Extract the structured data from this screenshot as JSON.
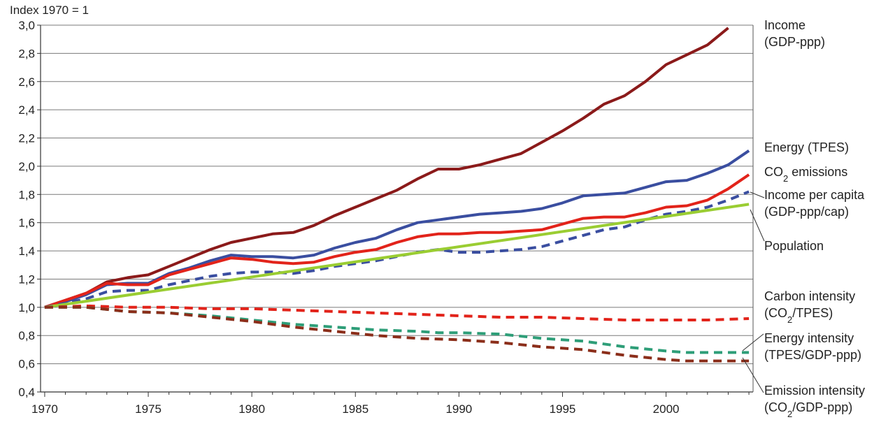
{
  "chart_data": {
    "type": "line",
    "title": "",
    "ylabel": "Index 1970 = 1",
    "xlabel": "",
    "xlim": [
      1970,
      2004
    ],
    "ylim": [
      0.4,
      3.0
    ],
    "grid": true,
    "legend": "right",
    "x_ticks": [
      "1970",
      "1975",
      "1980",
      "1985",
      "1990",
      "1995",
      "2000"
    ],
    "y_ticks": [
      "0,4",
      "0,6",
      "0,8",
      "1,0",
      "1,2",
      "1,4",
      "1,6",
      "1,8",
      "2,0",
      "2,2",
      "2,4",
      "2,6",
      "2,8",
      "3,0"
    ],
    "series": [
      {
        "name": "Income (GDP-ppp)",
        "label_lines": [
          "Income",
          "(GDP-ppp)"
        ],
        "color": "#8b1a1a",
        "dashed": false,
        "x": [
          1970,
          1971,
          1972,
          1973,
          1974,
          1975,
          1976,
          1977,
          1978,
          1979,
          1980,
          1981,
          1982,
          1983,
          1984,
          1985,
          1986,
          1987,
          1988,
          1989,
          1990,
          1991,
          1992,
          1993,
          1994,
          1995,
          1996,
          1997,
          1998,
          1999,
          2000,
          2001,
          2002,
          2003
        ],
        "y": [
          1.0,
          1.05,
          1.1,
          1.18,
          1.21,
          1.23,
          1.29,
          1.35,
          1.41,
          1.46,
          1.49,
          1.52,
          1.53,
          1.58,
          1.65,
          1.71,
          1.77,
          1.83,
          1.91,
          1.98,
          1.98,
          2.01,
          2.05,
          2.09,
          2.17,
          2.25,
          2.34,
          2.44,
          2.5,
          2.6,
          2.72,
          2.79,
          2.86,
          2.98
        ]
      },
      {
        "name": "Energy (TPES)",
        "label_lines": [
          "Energy (TPES)"
        ],
        "color": "#3a4ea0",
        "dashed": false,
        "x": [
          1970,
          1971,
          1972,
          1973,
          1974,
          1975,
          1976,
          1977,
          1978,
          1979,
          1980,
          1981,
          1982,
          1983,
          1984,
          1985,
          1986,
          1987,
          1988,
          1989,
          1990,
          1991,
          1992,
          1993,
          1994,
          1995,
          1996,
          1997,
          1998,
          1999,
          2000,
          2001,
          2002,
          2003,
          2004
        ],
        "y": [
          1.0,
          1.04,
          1.09,
          1.16,
          1.17,
          1.17,
          1.24,
          1.28,
          1.33,
          1.37,
          1.36,
          1.36,
          1.35,
          1.37,
          1.42,
          1.46,
          1.49,
          1.55,
          1.6,
          1.62,
          1.64,
          1.66,
          1.67,
          1.68,
          1.7,
          1.74,
          1.79,
          1.8,
          1.81,
          1.85,
          1.89,
          1.9,
          1.95,
          2.01,
          2.11
        ]
      },
      {
        "name": "CO2 emissions",
        "label_lines": [
          "CO2 emissions"
        ],
        "color": "#e2231a",
        "dashed": false,
        "x": [
          1970,
          1971,
          1972,
          1973,
          1974,
          1975,
          1976,
          1977,
          1978,
          1979,
          1980,
          1981,
          1982,
          1983,
          1984,
          1985,
          1986,
          1987,
          1988,
          1989,
          1990,
          1991,
          1992,
          1993,
          1994,
          1995,
          1996,
          1997,
          1998,
          1999,
          2000,
          2001,
          2002,
          2003,
          2004
        ],
        "y": [
          1.0,
          1.05,
          1.1,
          1.17,
          1.16,
          1.16,
          1.23,
          1.27,
          1.31,
          1.35,
          1.34,
          1.32,
          1.31,
          1.32,
          1.36,
          1.39,
          1.41,
          1.46,
          1.5,
          1.52,
          1.52,
          1.53,
          1.53,
          1.54,
          1.55,
          1.59,
          1.63,
          1.64,
          1.64,
          1.67,
          1.71,
          1.72,
          1.76,
          1.84,
          1.94
        ]
      },
      {
        "name": "Income per capita (GDP-ppp/cap)",
        "label_lines": [
          "Income per capita",
          "(GDP-ppp/cap)"
        ],
        "color": "#3a4ea0",
        "dashed": true,
        "x": [
          1970,
          1971,
          1972,
          1973,
          1974,
          1975,
          1976,
          1977,
          1978,
          1979,
          1980,
          1981,
          1982,
          1983,
          1984,
          1985,
          1986,
          1987,
          1988,
          1989,
          1990,
          1991,
          1992,
          1993,
          1994,
          1995,
          1996,
          1997,
          1998,
          1999,
          2000,
          2001,
          2002,
          2003,
          2004
        ],
        "y": [
          1.0,
          1.03,
          1.06,
          1.11,
          1.12,
          1.12,
          1.16,
          1.19,
          1.22,
          1.24,
          1.25,
          1.25,
          1.24,
          1.26,
          1.29,
          1.31,
          1.33,
          1.36,
          1.39,
          1.41,
          1.39,
          1.39,
          1.4,
          1.41,
          1.43,
          1.47,
          1.51,
          1.55,
          1.57,
          1.62,
          1.66,
          1.68,
          1.71,
          1.76,
          1.82
        ]
      },
      {
        "name": "Population",
        "label_lines": [
          "Population"
        ],
        "color": "#9acd32",
        "dashed": false,
        "x": [
          1970,
          2004
        ],
        "y": [
          1.0,
          1.73
        ]
      },
      {
        "name": "Carbon intensity (CO2/TPES)",
        "label_lines": [
          "Carbon intensity",
          "(CO2/TPES)"
        ],
        "color": "#e2231a",
        "dashed": true,
        "x": [
          1970,
          1972,
          1974,
          1976,
          1978,
          1980,
          1982,
          1984,
          1986,
          1988,
          1990,
          1992,
          1994,
          1996,
          1998,
          2000,
          2002,
          2004
        ],
        "y": [
          1.0,
          1.01,
          1.0,
          1.0,
          0.99,
          0.99,
          0.98,
          0.97,
          0.96,
          0.95,
          0.94,
          0.93,
          0.93,
          0.92,
          0.91,
          0.91,
          0.91,
          0.92
        ]
      },
      {
        "name": "Energy intensity (TPES/GDP-ppp)",
        "label_lines": [
          "Energy intensity",
          "(TPES/GDP-ppp)"
        ],
        "color": "#2e9e78",
        "dashed": true,
        "x": [
          1970,
          1972,
          1974,
          1976,
          1978,
          1980,
          1982,
          1984,
          1986,
          1988,
          1989,
          1990,
          1992,
          1994,
          1996,
          1998,
          2000,
          2001,
          2002,
          2004
        ],
        "y": [
          1.0,
          1.0,
          0.97,
          0.96,
          0.94,
          0.91,
          0.88,
          0.86,
          0.84,
          0.83,
          0.82,
          0.82,
          0.81,
          0.78,
          0.76,
          0.72,
          0.69,
          0.68,
          0.68,
          0.68
        ]
      },
      {
        "name": "Emission intensity (CO2/GDP-ppp)",
        "label_lines": [
          "Emission intensity",
          "(CO2/GDP-ppp)"
        ],
        "color": "#8b2e1a",
        "dashed": true,
        "x": [
          1970,
          1972,
          1974,
          1976,
          1978,
          1980,
          1982,
          1984,
          1986,
          1988,
          1990,
          1992,
          1994,
          1996,
          1998,
          2000,
          2001,
          2002,
          2004
        ],
        "y": [
          1.0,
          1.0,
          0.97,
          0.96,
          0.93,
          0.9,
          0.86,
          0.83,
          0.8,
          0.78,
          0.77,
          0.75,
          0.72,
          0.7,
          0.66,
          0.63,
          0.62,
          0.62,
          0.62
        ]
      }
    ]
  }
}
